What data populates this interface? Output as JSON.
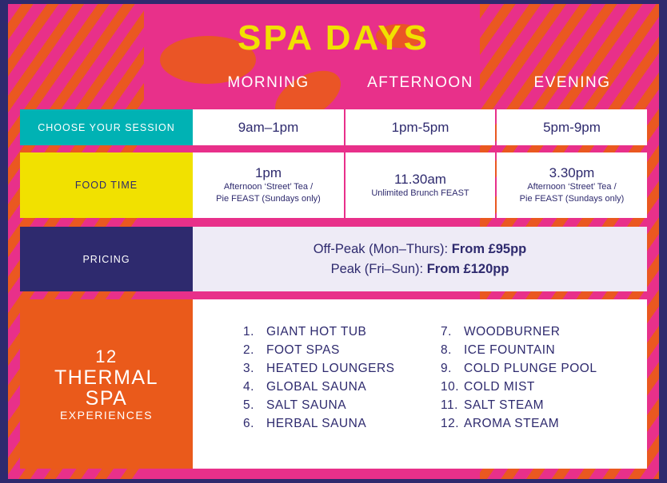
{
  "title": "SPA DAYS",
  "columns": [
    "MORNING",
    "AFTERNOON",
    "EVENING"
  ],
  "session": {
    "label": "CHOOSE YOUR SESSION",
    "times": [
      "9am–1pm",
      "1pm-5pm",
      "5pm-9pm"
    ]
  },
  "food": {
    "label": "FOOD TIME",
    "cells": [
      {
        "time": "1pm",
        "line1": "Afternoon ‘Street’ Tea /",
        "line2": "Pie FEAST (Sundays only)"
      },
      {
        "time": "11.30am",
        "line1": "Unlimited Brunch FEAST",
        "line2": ""
      },
      {
        "time": "3.30pm",
        "line1": "Afternoon ‘Street’ Tea /",
        "line2": "Pie FEAST (Sundays only)"
      }
    ]
  },
  "pricing": {
    "label": "PRICING",
    "offpeak_label": "Off-Peak (Mon–Thurs): ",
    "offpeak_price": "From £95pp",
    "peak_label": "Peak (Fri–Sun): ",
    "peak_price": "From £120pp"
  },
  "thermal": {
    "count": "12",
    "line1": "THERMAL",
    "line2": "SPA",
    "line3": "EXPERIENCES",
    "items": [
      {
        "n": "1.",
        "t": "GIANT HOT TUB"
      },
      {
        "n": "2.",
        "t": "FOOT SPAS"
      },
      {
        "n": "3.",
        "t": "HEATED LOUNGERS"
      },
      {
        "n": "4.",
        "t": "GLOBAL SAUNA"
      },
      {
        "n": "5.",
        "t": "SALT SAUNA"
      },
      {
        "n": "6.",
        "t": "HERBAL SAUNA"
      },
      {
        "n": "7.",
        "t": "WOODBURNER"
      },
      {
        "n": "8.",
        "t": "ICE FOUNTAIN"
      },
      {
        "n": "9.",
        "t": "COLD PLUNGE POOL"
      },
      {
        "n": "10.",
        "t": "COLD MIST"
      },
      {
        "n": "11.",
        "t": "SALT STEAM"
      },
      {
        "n": "12.",
        "t": "AROMA STEAM"
      }
    ]
  },
  "colors": {
    "pink": "#e8308a",
    "orange": "#ea5a1b",
    "teal": "#00b2b4",
    "yellow": "#f1e100",
    "navy": "#2e2a6e",
    "lavender": "#eeebf6"
  }
}
